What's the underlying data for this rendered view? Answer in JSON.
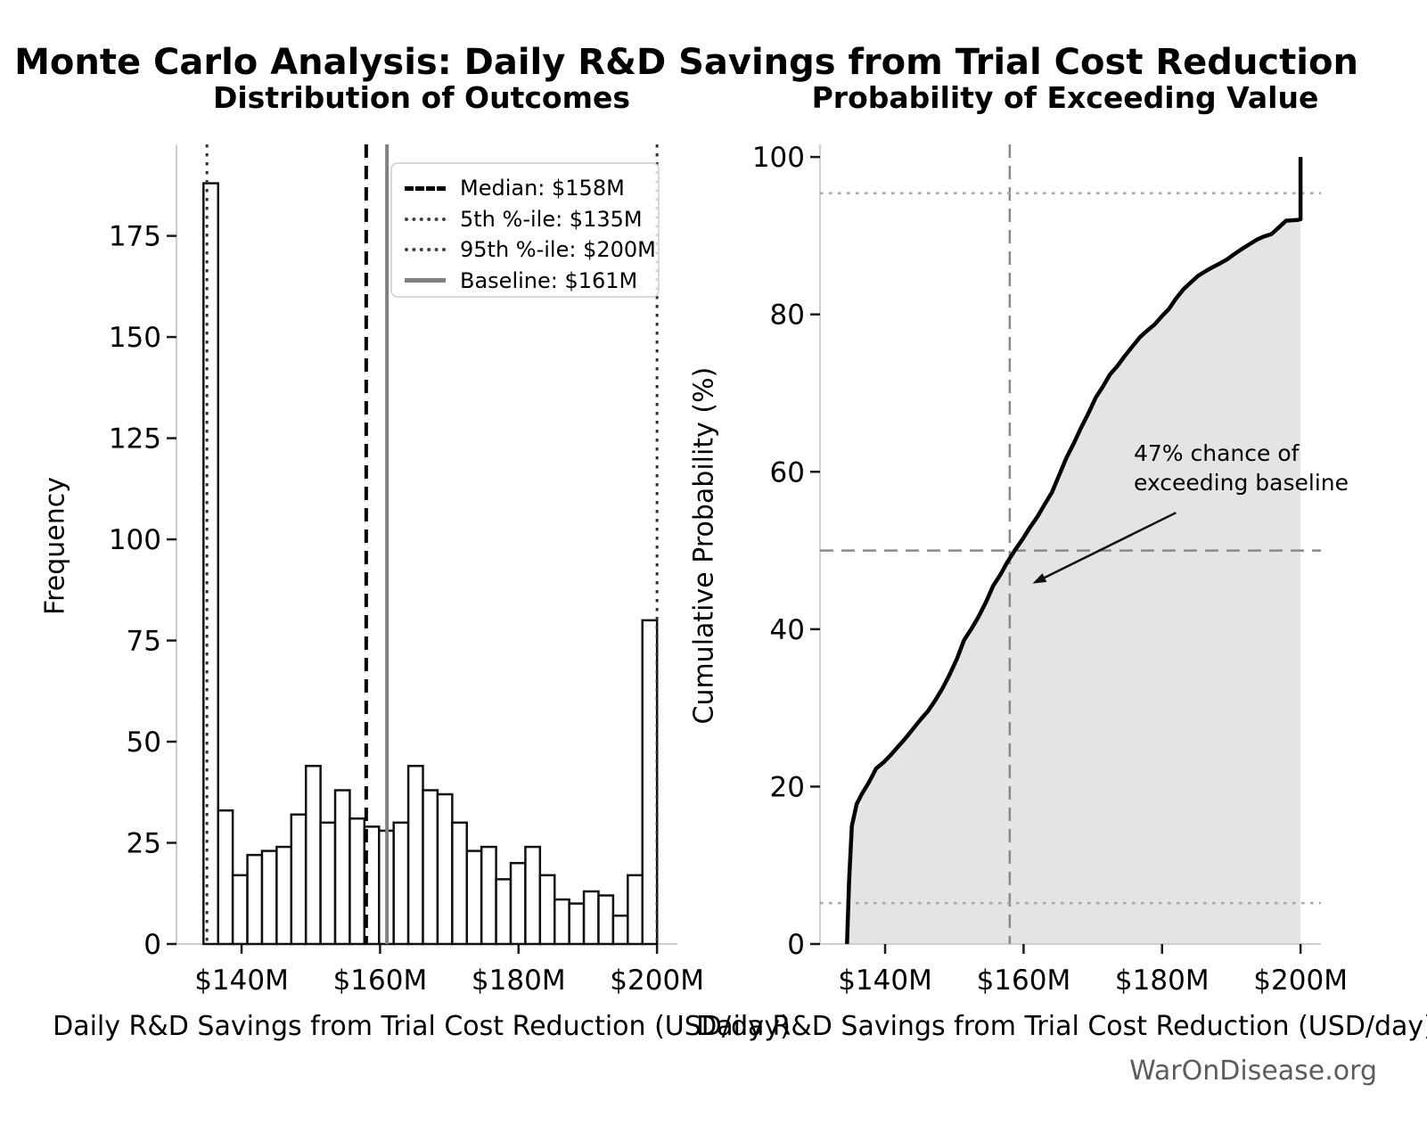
{
  "figure": {
    "title": "Monte Carlo Analysis: Daily R&D Savings from Trial Cost Reduction",
    "watermark": "WarOnDisease.org"
  },
  "colors": {
    "bar_fill": "#ffffff",
    "bar_edge": "#111111",
    "spine": "#cfcfcf",
    "tick": "#1a1a1a",
    "cdf_line": "#000000",
    "cdf_fill": "#e4e4e4",
    "median_line": "#000000",
    "percentile_line": "#303030",
    "baseline_line": "#808080",
    "ref_dashed_gray": "#8a8a8a",
    "ref_dotted_gray": "#a6a6a6",
    "annotation_arrow": "#111111",
    "watermark": "#5c5c5c"
  },
  "chart_data": [
    {
      "type": "bar",
      "variant": "histogram",
      "title": "Distribution of Outcomes",
      "xlabel": "Daily R&D Savings from Trial Cost Reduction (USD/day)",
      "ylabel": "Frequency",
      "units": "USD millions per day",
      "bin_start": 134.5,
      "bin_width": 2.113,
      "values": [
        188,
        33,
        17,
        22,
        23,
        24,
        32,
        44,
        30,
        38,
        31,
        29,
        28,
        30,
        44,
        38,
        37,
        30,
        23,
        24,
        16,
        20,
        24,
        17,
        11,
        10,
        13,
        12,
        7,
        17,
        80
      ],
      "xlim": [
        130.6,
        201.4
      ],
      "ylim": [
        0,
        197.6
      ],
      "grid": false,
      "xticks": {
        "values": [
          140,
          160,
          180,
          200
        ],
        "labels": [
          "$140M",
          "$160M",
          "$180M",
          "$200M"
        ]
      },
      "yticks": {
        "values": [
          0,
          25,
          50,
          75,
          100,
          125,
          150,
          175
        ],
        "labels": [
          "0",
          "25",
          "50",
          "75",
          "100",
          "125",
          "150",
          "175"
        ]
      },
      "ref_lines": [
        {
          "id": "median",
          "x": 158,
          "style": "dashed",
          "color": "#000000",
          "width": 4,
          "label": "Median: $158M"
        },
        {
          "id": "pct5",
          "x": 135,
          "style": "dotted",
          "color": "#303030",
          "width": 3,
          "label": "5th %-ile: $135M"
        },
        {
          "id": "pct95",
          "x": 200,
          "style": "dotted",
          "color": "#303030",
          "width": 3,
          "label": "95th %-ile: $200M"
        },
        {
          "id": "baseline",
          "x": 161,
          "style": "solid",
          "color": "#808080",
          "width": 4,
          "label": "Baseline: $161M"
        }
      ],
      "legend_position": "upper right"
    },
    {
      "type": "line",
      "variant": "empirical-cdf",
      "title": "Probability of Exceeding Value",
      "xlabel": "Daily R&D Savings from Trial Cost Reduction (USD/day)",
      "ylabel": "Cumulative Probability (%)",
      "x": [
        134.5,
        134.8,
        135.2,
        135.9,
        136.6,
        137.7,
        138.7,
        139.8,
        140.8,
        141.9,
        143.0,
        144.0,
        145.1,
        146.2,
        147.2,
        148.3,
        149.3,
        150.4,
        151.4,
        152.5,
        153.5,
        154.6,
        155.6,
        156.7,
        157.7,
        158.8,
        159.9,
        160.9,
        162.0,
        163.0,
        164.1,
        165.1,
        166.2,
        167.3,
        168.3,
        169.4,
        170.4,
        171.5,
        172.5,
        173.6,
        174.6,
        175.7,
        176.8,
        177.8,
        178.9,
        179.9,
        181.0,
        182.0,
        183.1,
        184.2,
        185.2,
        186.3,
        187.3,
        188.4,
        189.4,
        190.5,
        191.5,
        192.6,
        193.7,
        194.7,
        195.8,
        196.8,
        197.9,
        199.5,
        200.0,
        200.0
      ],
      "y": [
        0,
        8,
        15,
        17.8,
        19.0,
        20.6,
        22.3,
        23.1,
        24.0,
        25.1,
        26.2,
        27.3,
        28.5,
        29.6,
        30.9,
        32.5,
        34.2,
        36.3,
        38.6,
        40.1,
        41.6,
        43.5,
        45.5,
        47.0,
        48.6,
        50.1,
        51.5,
        52.9,
        54.3,
        55.8,
        57.4,
        59.5,
        61.8,
        63.7,
        65.6,
        67.5,
        69.4,
        70.9,
        72.4,
        73.5,
        74.7,
        75.9,
        77.1,
        77.9,
        78.7,
        79.7,
        80.7,
        82.0,
        83.2,
        84.1,
        84.9,
        85.5,
        86.0,
        86.5,
        87.0,
        87.7,
        88.3,
        88.9,
        89.5,
        89.9,
        90.2,
        91.0,
        91.9,
        92.0,
        92.1,
        100
      ],
      "fill_under": true,
      "xlim": [
        130.6,
        201.4
      ],
      "ylim": [
        0,
        101.6
      ],
      "grid": false,
      "xticks": {
        "values": [
          140,
          160,
          180,
          200
        ],
        "labels": [
          "$140M",
          "$160M",
          "$180M",
          "$200M"
        ]
      },
      "yticks": {
        "values": [
          0,
          20,
          40,
          60,
          80,
          100
        ],
        "labels": [
          "0",
          "20",
          "40",
          "60",
          "80",
          "100"
        ]
      },
      "ref_lines": [
        {
          "id": "prob50",
          "orient": "h",
          "value": 50,
          "style": "dashed",
          "color": "#8a8a8a",
          "width": 2.5
        },
        {
          "id": "median",
          "orient": "v",
          "value": 158,
          "style": "dashed",
          "color": "#8a8a8a",
          "width": 2.5
        },
        {
          "id": "pct95",
          "orient": "h",
          "value": 95.4,
          "style": "dotted",
          "color": "#a6a6a6",
          "width": 2.5
        },
        {
          "id": "pct5",
          "orient": "h",
          "value": 5.2,
          "style": "dotted",
          "color": "#a6a6a6",
          "width": 2.5
        }
      ],
      "annotation": {
        "lines": [
          "47% chance of",
          "exceeding baseline"
        ],
        "arrow_start_xy": [
          182.0,
          54.8
        ],
        "arrow_end_xy": [
          161.3,
          45.8
        ]
      }
    }
  ]
}
